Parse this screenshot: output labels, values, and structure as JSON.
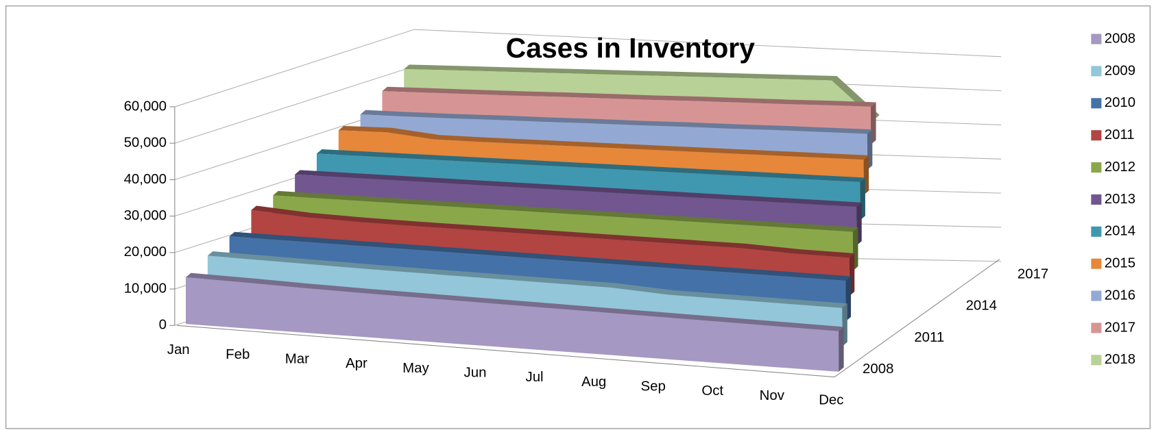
{
  "chart_data": {
    "type": "area3d",
    "title": "Cases in Inventory",
    "categories": [
      "Jan",
      "Feb",
      "Mar",
      "Apr",
      "May",
      "Jun",
      "Jul",
      "Aug",
      "Sep",
      "Oct",
      "Nov",
      "Dec"
    ],
    "series": [
      {
        "name": "2008",
        "color": "#a598c2",
        "values": [
          11500,
          11300,
          11000,
          10800,
          10700,
          10600,
          10500,
          10400,
          10300,
          10200,
          10100,
          10000
        ]
      },
      {
        "name": "2009",
        "color": "#93c6d8",
        "values": [
          11800,
          11600,
          11400,
          11200,
          11100,
          11000,
          10900,
          10800,
          10000,
          9900,
          9800,
          9700
        ]
      },
      {
        "name": "2010",
        "color": "#4472a8",
        "values": [
          11500,
          11400,
          11300,
          11200,
          11100,
          11000,
          10900,
          10800,
          10700,
          10600,
          10500,
          10400
        ]
      },
      {
        "name": "2011",
        "color": "#b24442",
        "values": [
          13000,
          12000,
          11600,
          11400,
          11300,
          11200,
          11100,
          11000,
          10900,
          10800,
          10200,
          10000
        ]
      },
      {
        "name": "2012",
        "color": "#8aa84a",
        "values": [
          11500,
          11400,
          11300,
          11200,
          11100,
          11000,
          10900,
          10800,
          10700,
          10600,
          10500,
          10400
        ]
      },
      {
        "name": "2013",
        "color": "#725690",
        "values": [
          11600,
          11500,
          11400,
          11300,
          11200,
          11100,
          11000,
          10900,
          10800,
          10700,
          10600,
          10500
        ]
      },
      {
        "name": "2014",
        "color": "#3f98b0",
        "values": [
          11700,
          11600,
          11500,
          11400,
          11300,
          11200,
          11100,
          11000,
          10900,
          10800,
          10700,
          10600
        ]
      },
      {
        "name": "2015",
        "color": "#e6873a",
        "values": [
          12500,
          12500,
          11000,
          10800,
          10700,
          10600,
          10500,
          10400,
          10300,
          10200,
          10100,
          10000
        ]
      },
      {
        "name": "2016",
        "color": "#93a9d4",
        "values": [
          11200,
          11000,
          10900,
          10900,
          10800,
          10800,
          10700,
          10700,
          10600,
          10600,
          10500,
          10400
        ]
      },
      {
        "name": "2017",
        "color": "#d69594",
        "values": [
          12000,
          11900,
          11800,
          11700,
          11700,
          11600,
          11500,
          11500,
          11400,
          11300,
          11300,
          11200
        ]
      },
      {
        "name": "2018",
        "color": "#b8d196",
        "values": [
          12500,
          12400,
          12300,
          12200,
          12100,
          12000,
          11900,
          11800,
          11700,
          11600,
          11500,
          0
        ]
      }
    ],
    "ylim": [
      0,
      60000
    ],
    "yticks": [
      0,
      {
        "value": 10000,
        "label": "10,000"
      },
      {
        "value": 20000,
        "label": "20,000"
      },
      {
        "value": 30000,
        "label": "30,000"
      },
      {
        "value": 40000,
        "label": "40,000"
      },
      {
        "value": 50000,
        "label": "50,000"
      },
      {
        "value": 60000,
        "label": "60,000"
      }
    ],
    "depth_ticks": [
      0,
      3,
      6,
      9
    ],
    "grid": true,
    "legend": "right"
  }
}
